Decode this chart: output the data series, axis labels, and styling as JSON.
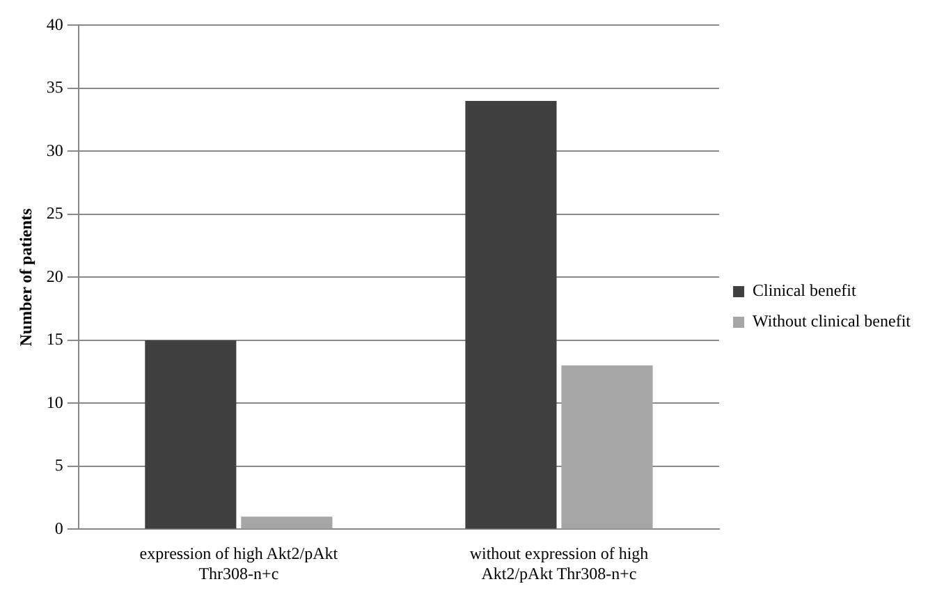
{
  "chart_data": {
    "type": "bar",
    "ylabel": "Number of patients",
    "categories": [
      "expression of high Akt2/pAkt Thr308-n+c",
      "without expression of high Akt2/pAkt Thr308-n+c"
    ],
    "series": [
      {
        "name": "Clinical benefit",
        "color": "#404040",
        "values": [
          15,
          34
        ]
      },
      {
        "name": "Without clinical benefit",
        "color": "#a6a6a6",
        "values": [
          1,
          13
        ]
      }
    ],
    "ylim": [
      0,
      40
    ],
    "yticks": [
      0,
      5,
      10,
      15,
      20,
      25,
      30,
      35,
      40
    ],
    "grid": "y",
    "legend": "right"
  }
}
